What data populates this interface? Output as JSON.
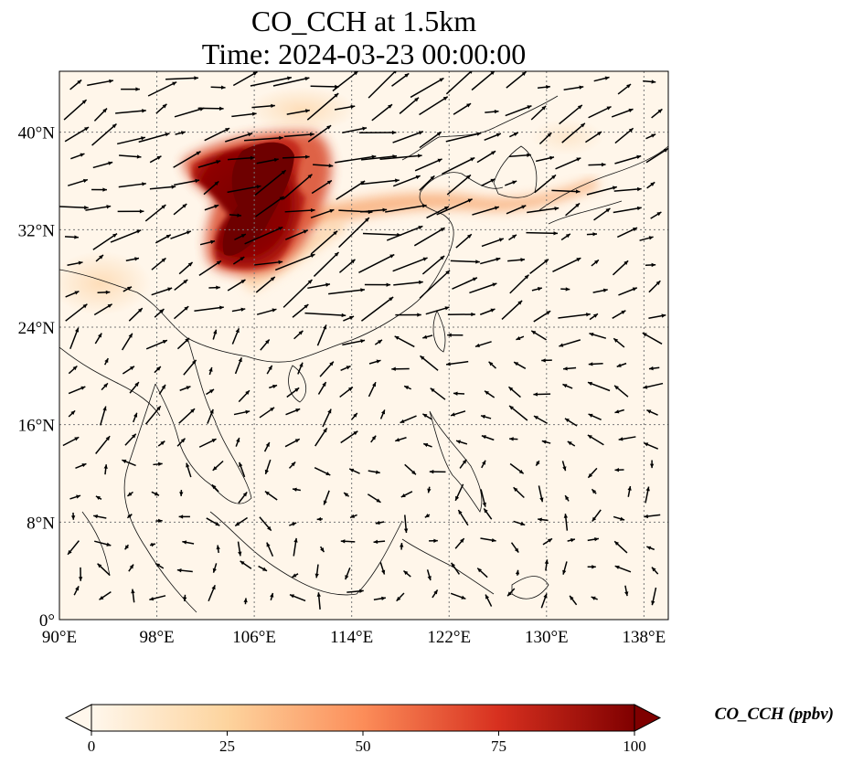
{
  "title": {
    "line1": "CO_CCH at 1.5km",
    "line2": "Time: 2024-03-23 00:00:00"
  },
  "map": {
    "projection": "PlateCarree",
    "lon_range": [
      90,
      140
    ],
    "lat_range": [
      0,
      45
    ],
    "gridlines": "dotted",
    "lon_ticks": [
      {
        "value": 90,
        "label": "90°E"
      },
      {
        "value": 98,
        "label": "98°E"
      },
      {
        "value": 106,
        "label": "106°E"
      },
      {
        "value": 114,
        "label": "114°E"
      },
      {
        "value": 122,
        "label": "122°E"
      },
      {
        "value": 130,
        "label": "130°E"
      },
      {
        "value": 138,
        "label": "138°E"
      }
    ],
    "lat_ticks": [
      {
        "value": 0,
        "label": "0°"
      },
      {
        "value": 8,
        "label": "8°N"
      },
      {
        "value": 16,
        "label": "16°N"
      },
      {
        "value": 24,
        "label": "24°N"
      },
      {
        "value": 32,
        "label": "32°N"
      },
      {
        "value": 40,
        "label": "40°N"
      }
    ],
    "wind_vectors": "black arrows",
    "plume": {
      "core_region": "Sichuan Basin / central China",
      "core_value_ppbv": ">100",
      "tail_direction": "east-northeast toward Korea and Japan"
    }
  },
  "colorbar": {
    "colormap": "OrRd",
    "colors": [
      "#fff7ec",
      "#fdd49e",
      "#fc8d59",
      "#d7301f",
      "#7f0000"
    ],
    "range": [
      0,
      100
    ],
    "extend": "both",
    "ticks": [
      {
        "value": 0,
        "label": "0"
      },
      {
        "value": 25,
        "label": "25"
      },
      {
        "value": 50,
        "label": "50"
      },
      {
        "value": 75,
        "label": "75"
      },
      {
        "value": 100,
        "label": "100"
      }
    ],
    "label": "CO_CCH (ppbv)"
  }
}
